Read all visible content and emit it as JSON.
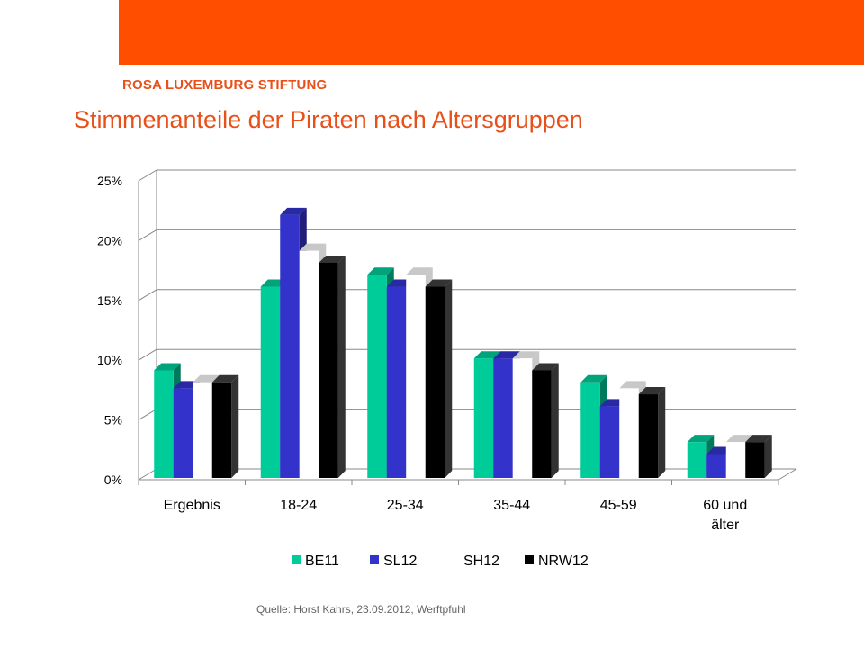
{
  "brand": {
    "name": "ROSA LUXEMBURG STIFTUNG",
    "color": "#ff4e00",
    "text_color": "#e8501a"
  },
  "slide": {
    "title": "Stimmenanteile der Piraten nach Altersgruppen",
    "title_color": "#e8501a"
  },
  "source": "Quelle: Horst Kahrs, 23.09.2012, Werftpfuhl",
  "chart_data": {
    "type": "bar",
    "categories": [
      [
        "Ergebnis"
      ],
      [
        "18-24"
      ],
      [
        "25-34"
      ],
      [
        "35-44"
      ],
      [
        "45-59"
      ],
      [
        "60 und",
        "älter"
      ]
    ],
    "series": [
      {
        "name": "BE11",
        "color": "#00cc99",
        "values": [
          9,
          16,
          17,
          10,
          8,
          3
        ]
      },
      {
        "name": "SL12",
        "color": "#3333cc",
        "values": [
          7.5,
          22,
          16,
          10,
          6,
          2
        ]
      },
      {
        "name": "SH12",
        "color": "#ffffff",
        "values": [
          8,
          19,
          17,
          10,
          7.5,
          3
        ]
      },
      {
        "name": "NRW12",
        "color": "#000000",
        "values": [
          8,
          18,
          16,
          9,
          7,
          3
        ]
      }
    ],
    "ylim": [
      0,
      25
    ],
    "yticks": [
      "0%",
      "5%",
      "10%",
      "15%",
      "20%",
      "25%"
    ],
    "grid": true,
    "legend": "bottom",
    "style": "3d-clustered-column"
  }
}
